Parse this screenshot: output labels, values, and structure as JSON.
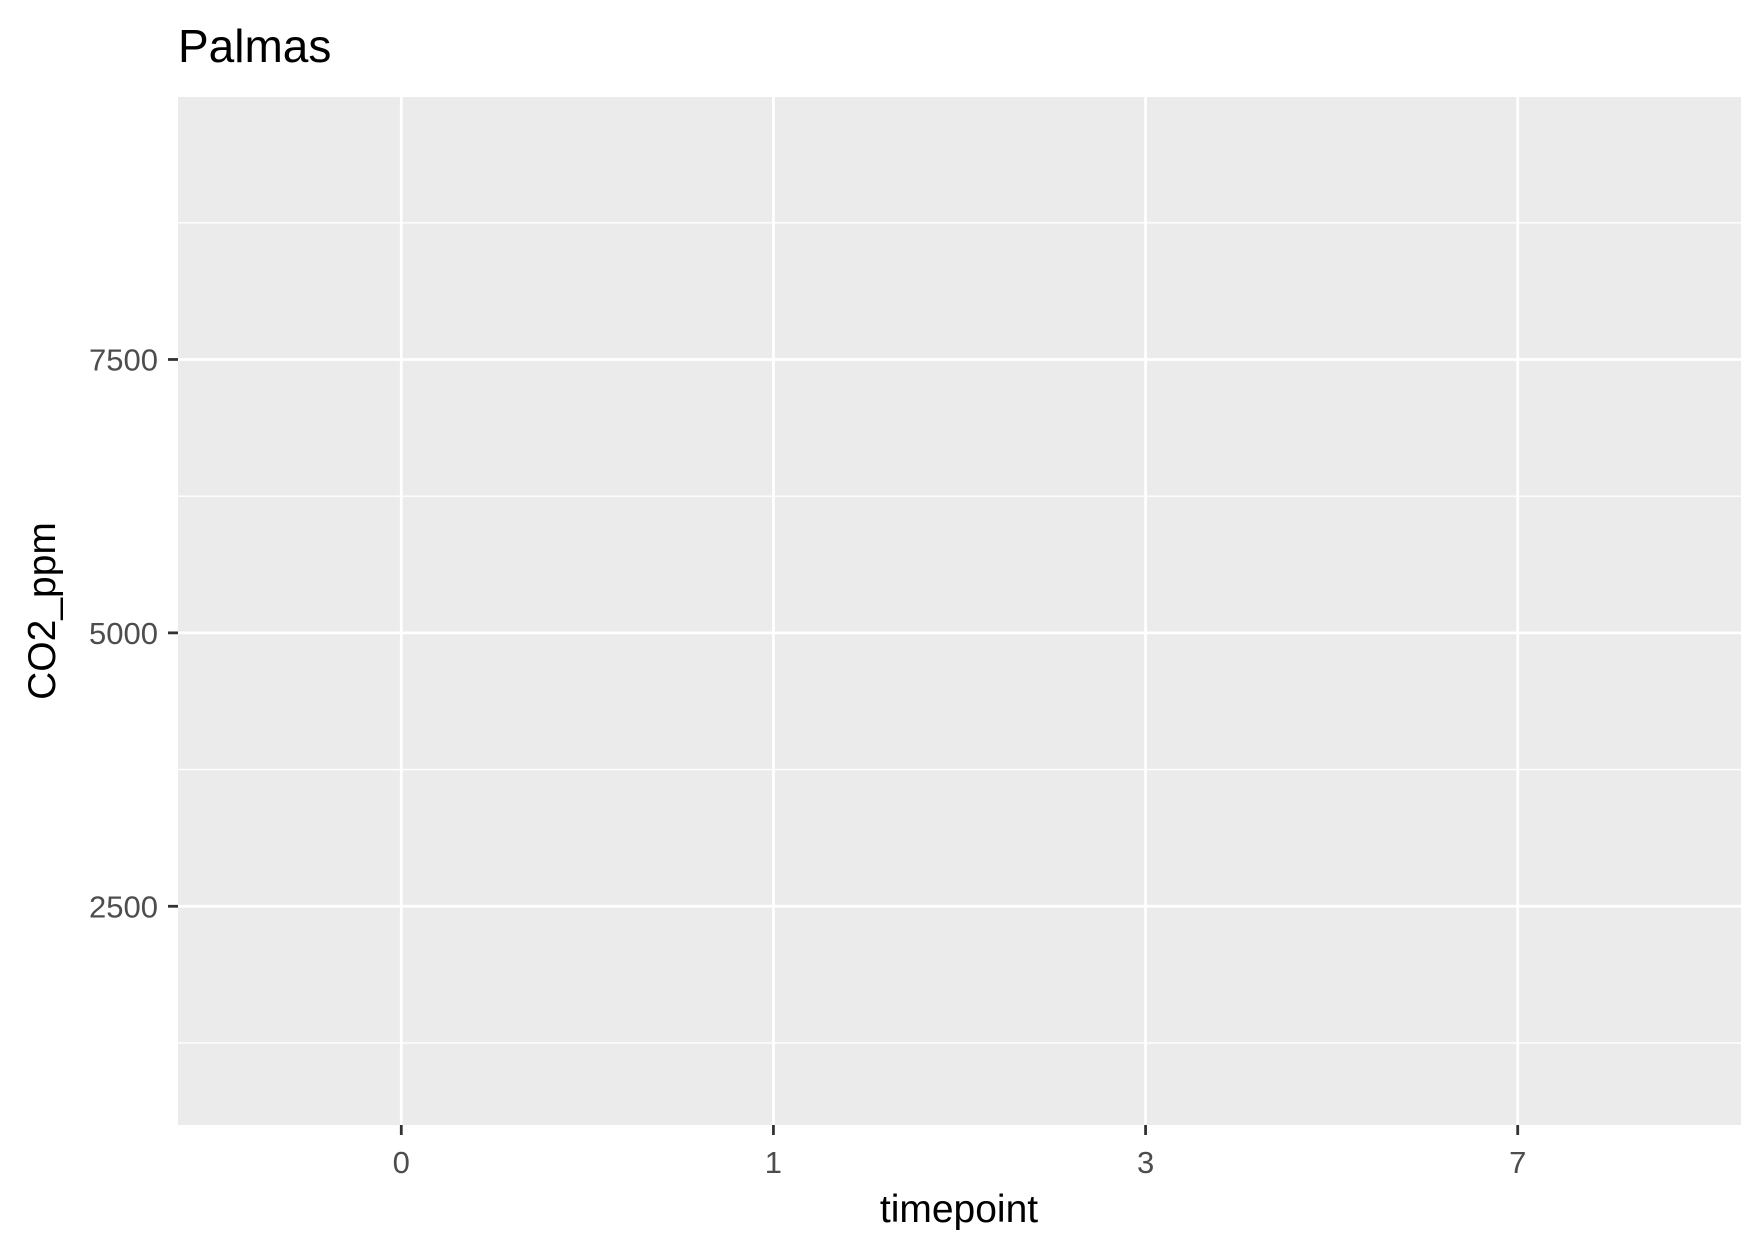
{
  "chart_data": {
    "type": "scatter",
    "title": "Palmas",
    "xlabel": "timepoint",
    "ylabel": "CO2_ppm",
    "x_axis": {
      "scale": "discrete",
      "categories": [
        "0",
        "1",
        "3",
        "7"
      ]
    },
    "y_axis": {
      "scale": "continuous",
      "ylim": [
        500,
        9900
      ],
      "major_ticks": [
        2500,
        5000,
        7500
      ],
      "minor_ticks": [
        1250,
        3750,
        6250,
        8750
      ]
    },
    "series": [],
    "grid": true,
    "legend": "none",
    "colors": {
      "panel_background": "#EBEBEB",
      "grid": "#FFFFFF",
      "tick_label": "#4D4D4D",
      "tick_mark": "#333333",
      "text": "#000000"
    }
  }
}
